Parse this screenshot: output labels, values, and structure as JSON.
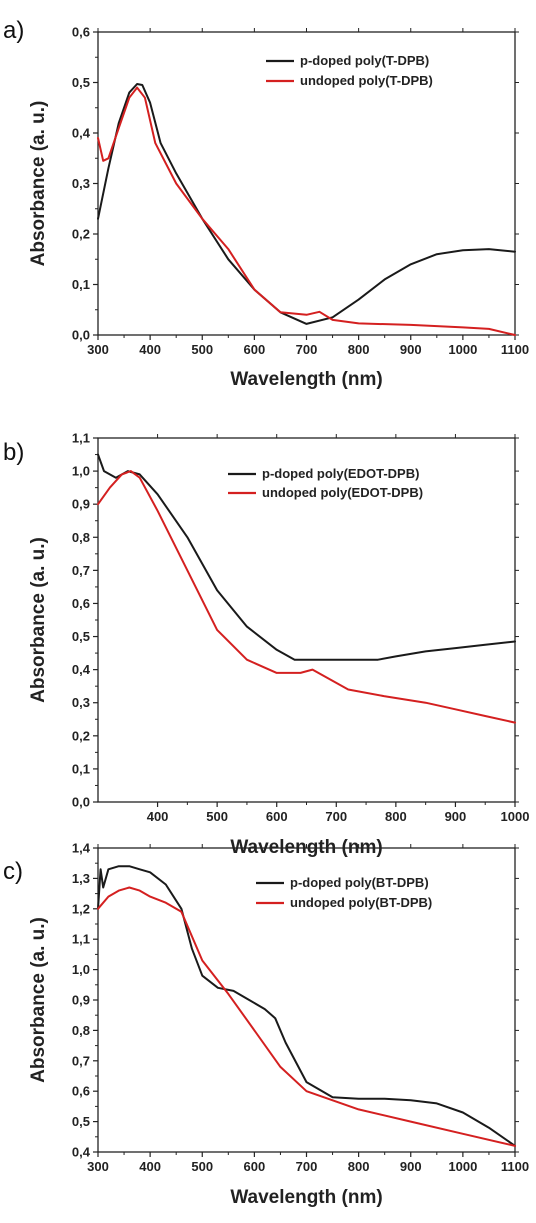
{
  "chart_data": [
    {
      "panel_label": "a)",
      "type": "line",
      "xlabel": "Wavelength (nm)",
      "ylabel": "Absorbance (a. u.)",
      "xlim": [
        300,
        1100
      ],
      "ylim": [
        0.0,
        0.6
      ],
      "x_ticks": [
        300,
        400,
        500,
        600,
        700,
        800,
        900,
        1000,
        1100
      ],
      "y_ticks": [
        0.0,
        0.1,
        0.2,
        0.3,
        0.4,
        0.5,
        0.6
      ],
      "x_tick_labels": [
        "300",
        "400",
        "500",
        "600",
        "700",
        "800",
        "900",
        "1000",
        "1100"
      ],
      "y_tick_labels": [
        "0,0",
        "0,1",
        "0,2",
        "0,3",
        "0,4",
        "0,5",
        "0,6"
      ],
      "legend_position": "top-right",
      "colors": {
        "p-doped": "#1a1a1a",
        "undoped": "#d42020"
      },
      "series": [
        {
          "name": "p-doped poly(T-DPB)",
          "color": "#1a1a1a",
          "x": [
            300,
            320,
            340,
            360,
            375,
            385,
            400,
            420,
            450,
            500,
            550,
            600,
            650,
            700,
            750,
            800,
            850,
            900,
            950,
            1000,
            1050,
            1100
          ],
          "y": [
            0.23,
            0.33,
            0.42,
            0.48,
            0.497,
            0.495,
            0.46,
            0.38,
            0.32,
            0.23,
            0.15,
            0.09,
            0.045,
            0.022,
            0.035,
            0.07,
            0.11,
            0.14,
            0.16,
            0.168,
            0.17,
            0.165
          ]
        },
        {
          "name": "undoped poly(T-DPB)",
          "color": "#d42020",
          "x": [
            300,
            310,
            320,
            340,
            360,
            375,
            390,
            410,
            450,
            500,
            550,
            600,
            650,
            700,
            725,
            750,
            800,
            900,
            1000,
            1050,
            1100
          ],
          "y": [
            0.39,
            0.345,
            0.35,
            0.41,
            0.47,
            0.49,
            0.47,
            0.38,
            0.3,
            0.23,
            0.17,
            0.09,
            0.045,
            0.04,
            0.046,
            0.03,
            0.023,
            0.02,
            0.015,
            0.012,
            0.0
          ]
        }
      ]
    },
    {
      "panel_label": "b)",
      "type": "line",
      "xlabel": "Wavelength (nm)",
      "ylabel": "Absorbance (a. u.)",
      "xlim": [
        300,
        1000
      ],
      "ylim": [
        0.0,
        1.1
      ],
      "x_ticks": [
        400,
        500,
        600,
        700,
        800,
        900,
        1000
      ],
      "y_ticks": [
        0.0,
        0.1,
        0.2,
        0.3,
        0.4,
        0.5,
        0.6,
        0.7,
        0.8,
        0.9,
        1.0,
        1.1
      ],
      "x_tick_labels": [
        "400",
        "500",
        "600",
        "700",
        "800",
        "900",
        "1000"
      ],
      "y_tick_labels": [
        "0,0",
        "0,1",
        "0,2",
        "0,3",
        "0,4",
        "0,5",
        "0,6",
        "0,7",
        "0,8",
        "0,9",
        "1,0",
        "1,1"
      ],
      "legend_position": "top-right",
      "colors": {
        "p-doped": "#1a1a1a",
        "undoped": "#d42020"
      },
      "series": [
        {
          "name": "p-doped poly(EDOT-DPB)",
          "color": "#1a1a1a",
          "x": [
            300,
            310,
            330,
            350,
            370,
            400,
            450,
            500,
            550,
            600,
            630,
            650,
            700,
            770,
            800,
            850,
            900,
            950,
            1000
          ],
          "y": [
            1.05,
            1.0,
            0.98,
            1.0,
            0.99,
            0.93,
            0.8,
            0.64,
            0.53,
            0.46,
            0.43,
            0.43,
            0.43,
            0.43,
            0.44,
            0.455,
            0.465,
            0.475,
            0.485
          ]
        },
        {
          "name": "undoped poly(EDOT-DPB)",
          "color": "#d42020",
          "x": [
            300,
            320,
            340,
            355,
            370,
            400,
            450,
            500,
            550,
            600,
            640,
            660,
            680,
            720,
            780,
            850,
            900,
            950,
            1000
          ],
          "y": [
            0.9,
            0.95,
            0.99,
            1.0,
            0.98,
            0.88,
            0.7,
            0.52,
            0.43,
            0.39,
            0.39,
            0.4,
            0.38,
            0.34,
            0.32,
            0.3,
            0.28,
            0.26,
            0.24
          ]
        }
      ]
    },
    {
      "panel_label": "c)",
      "type": "line",
      "xlabel": "Wavelength (nm)",
      "ylabel": "Absorbance (a. u.)",
      "xlim": [
        300,
        1100
      ],
      "ylim": [
        0.4,
        1.4
      ],
      "x_ticks": [
        300,
        400,
        500,
        600,
        700,
        800,
        900,
        1000,
        1100
      ],
      "y_ticks": [
        0.4,
        0.5,
        0.6,
        0.7,
        0.8,
        0.9,
        1.0,
        1.1,
        1.2,
        1.3,
        1.4
      ],
      "x_tick_labels": [
        "300",
        "400",
        "500",
        "600",
        "700",
        "800",
        "900",
        "1000",
        "1100"
      ],
      "y_tick_labels": [
        "0,4",
        "0,5",
        "0,6",
        "0,7",
        "0,8",
        "0,9",
        "1,0",
        "1,1",
        "1,2",
        "1,3",
        "1,4"
      ],
      "legend_position": "top-right",
      "colors": {
        "p-doped": "#1a1a1a",
        "undoped": "#d42020"
      },
      "series": [
        {
          "name": "p-doped poly(BT-DPB)",
          "color": "#1a1a1a",
          "x": [
            300,
            305,
            310,
            320,
            340,
            360,
            380,
            400,
            430,
            460,
            480,
            500,
            530,
            560,
            590,
            620,
            640,
            660,
            700,
            750,
            800,
            850,
            900,
            950,
            1000,
            1050,
            1100
          ],
          "y": [
            1.2,
            1.33,
            1.27,
            1.33,
            1.34,
            1.34,
            1.33,
            1.32,
            1.28,
            1.2,
            1.07,
            0.98,
            0.94,
            0.93,
            0.9,
            0.87,
            0.84,
            0.76,
            0.63,
            0.58,
            0.575,
            0.575,
            0.57,
            0.56,
            0.53,
            0.48,
            0.42
          ]
        },
        {
          "name": "undoped poly(BT-DPB)",
          "color": "#d42020",
          "x": [
            300,
            320,
            340,
            360,
            380,
            400,
            430,
            460,
            500,
            550,
            600,
            650,
            700,
            750,
            800,
            900,
            1000,
            1100
          ],
          "y": [
            1.2,
            1.24,
            1.26,
            1.27,
            1.26,
            1.24,
            1.22,
            1.19,
            1.03,
            0.92,
            0.8,
            0.68,
            0.6,
            0.57,
            0.54,
            0.5,
            0.46,
            0.42
          ]
        }
      ]
    }
  ]
}
